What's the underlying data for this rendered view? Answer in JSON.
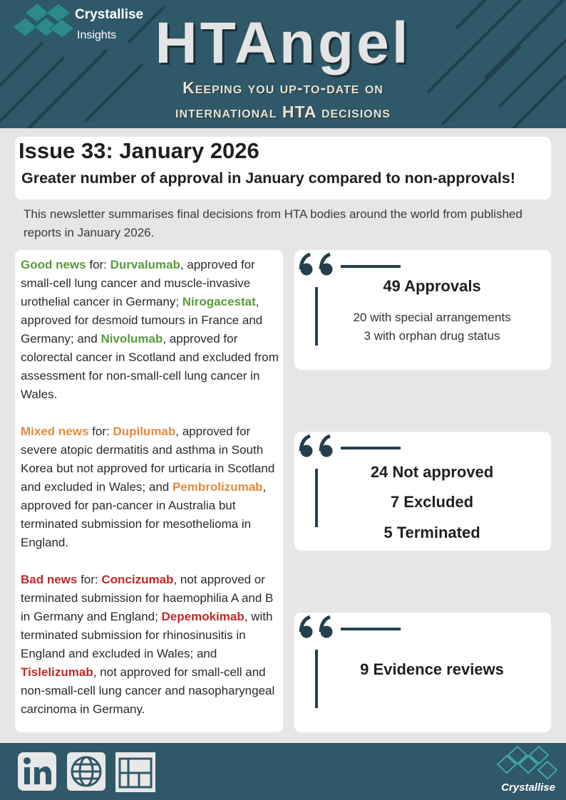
{
  "header": {
    "brand": "Crystallise",
    "brand_sub": "Insights",
    "title": "HTAngel",
    "tagline": [
      "Keeping you up-to-date on",
      "international HTA decisions"
    ]
  },
  "issue": {
    "title": "Issue 33: January 2026",
    "headline": "Greater number of approval in January compared to non-approvals!",
    "intro": "This newsletter summarises final decisions from HTA bodies around the world from published reports in January 2026."
  },
  "news": [
    {
      "color": "#5a9a3c",
      "segments": [
        "Good news",
        " for: ",
        "Durvalumab",
        ", approved for small-cell lung cancer and muscle-invasive urothelial cancer in Germany; ",
        "Nirogacestat",
        ", approved for desmoid tumours in France and Germany; and ",
        "Nivolumab",
        ", approved for colorectal cancer in Scotland and excluded from assessment for non-small-cell lung cancer in Wales."
      ]
    },
    {
      "color": "#e38a3f",
      "segments": [
        "Mixed news",
        " for: ",
        "Dupilumab",
        ", approved for severe atopic dermatitis and asthma in South Korea but not approved for urticaria in Scotland and excluded in Wales; and ",
        "Pembrolizumab",
        ", approved for pan-cancer in Australia but terminated submission for mesothelioma in England."
      ]
    },
    {
      "color": "#c0282a",
      "segments": [
        "Bad news",
        " for: ",
        "Concizumab",
        ", not approved or terminated submission for haemophilia A and B in Germany and England; ",
        "Depemokimab",
        ", with terminated submission for rhinosinusitis in England and excluded in Wales; and ",
        "Tislelizumab",
        ", not approved for small-cell and non-small-cell lung cancer and nasopharyngeal carcinoma in Germany."
      ]
    }
  ],
  "cards": [
    {
      "lines": [
        "49 Approvals",
        "20 with special arrangements",
        "3 with orphan drug status"
      ]
    },
    {
      "lines": [
        "24 Not approved",
        "7 Excluded",
        "5 Terminated"
      ]
    },
    {
      "lines": [
        "9 Evidence reviews"
      ]
    }
  ],
  "footer": {
    "brand": "Crystallise"
  }
}
